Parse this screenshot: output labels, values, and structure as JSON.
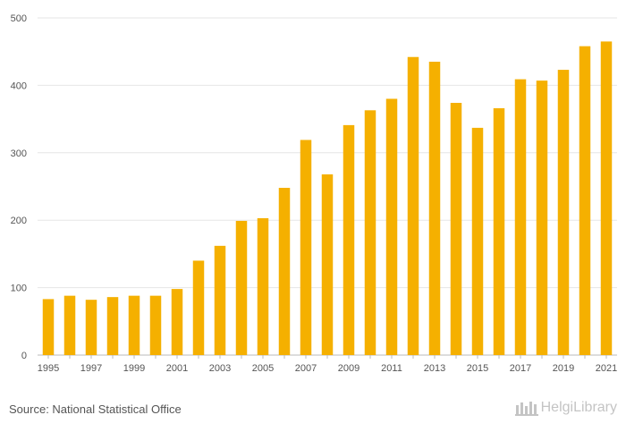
{
  "chart_data": {
    "type": "bar",
    "title": "",
    "xlabel": "",
    "ylabel": "",
    "categories": [
      "1995",
      "1996",
      "1997",
      "1998",
      "1999",
      "2000",
      "2001",
      "2002",
      "2003",
      "2004",
      "2005",
      "2006",
      "2007",
      "2008",
      "2009",
      "2010",
      "2011",
      "2012",
      "2013",
      "2014",
      "2015",
      "2016",
      "2017",
      "2018",
      "2019",
      "2020",
      "2021"
    ],
    "values": [
      83,
      88,
      82,
      86,
      88,
      88,
      98,
      140,
      162,
      199,
      203,
      248,
      319,
      268,
      341,
      363,
      380,
      442,
      435,
      374,
      337,
      366,
      409,
      407,
      423,
      458,
      465
    ],
    "ylim": [
      0,
      500
    ],
    "yticks": [
      0,
      100,
      200,
      300,
      400,
      500
    ],
    "xtick_labels": [
      "1995",
      "1997",
      "1999",
      "2001",
      "2003",
      "2005",
      "2007",
      "2009",
      "2011",
      "2013",
      "2015",
      "2017",
      "2019",
      "2021"
    ],
    "bar_color": "#f5b000",
    "grid": true
  },
  "footer": {
    "source": "Source: National Statistical Office",
    "brand": "HelgiLibrary"
  }
}
